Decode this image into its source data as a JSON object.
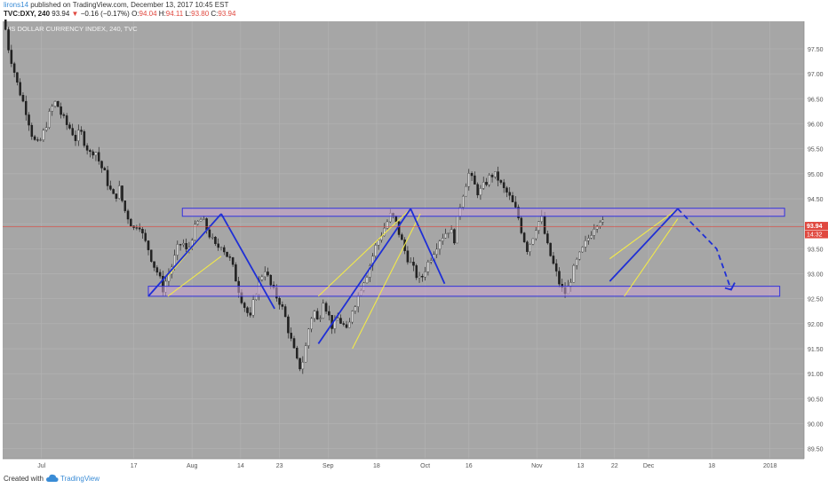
{
  "header": {
    "author": "lirons14",
    "published": "published on TradingView.com, December 13, 2017 10:45 EST",
    "symbol": "TVC:DXY, 240",
    "last": "93.94",
    "change_arrow": "▼",
    "change": "−0.16 (−0.17%)",
    "o_label": "O:",
    "o_val": "94.04",
    "h_label": "H:",
    "h_val": "94.11",
    "l_label": "L:",
    "l_val": "93.80",
    "c_label": "C:",
    "c_val": "93.94"
  },
  "chart_data": {
    "type": "candlestick",
    "title": "US DOLLAR CURRENCY INDEX, 240, TVC",
    "ylim": [
      89.3,
      98.05
    ],
    "y_ticks": [
      "89.50",
      "90.00",
      "90.50",
      "91.00",
      "91.50",
      "92.00",
      "92.50",
      "93.00",
      "93.50",
      "94.00",
      "94.50",
      "95.00",
      "95.50",
      "96.00",
      "96.50",
      "97.00",
      "97.50"
    ],
    "x_ticks": [
      "Jul",
      "17",
      "Aug",
      "14",
      "23",
      "Sep",
      "18",
      "Oct",
      "16",
      "Nov",
      "13",
      "22",
      "Dec",
      "18",
      "2018"
    ],
    "close_path": [
      [
        0.3,
        98.1
      ],
      [
        1,
        97.6
      ],
      [
        3,
        96.8
      ],
      [
        5,
        96.2
      ],
      [
        6,
        95.8
      ],
      [
        7,
        95.55
      ],
      [
        8,
        95.7
      ],
      [
        9,
        96.0
      ],
      [
        10,
        96.3
      ],
      [
        11,
        96.45
      ],
      [
        12,
        96.2
      ],
      [
        13,
        96.0
      ],
      [
        14,
        95.9
      ],
      [
        15,
        95.7
      ],
      [
        16,
        95.85
      ],
      [
        17,
        95.6
      ],
      [
        18,
        95.4
      ],
      [
        19,
        95.5
      ],
      [
        20,
        95.2
      ],
      [
        21,
        95.0
      ],
      [
        22,
        94.7
      ],
      [
        23,
        94.5
      ],
      [
        24,
        94.7
      ],
      [
        25,
        94.3
      ],
      [
        26,
        94.1
      ],
      [
        27,
        93.9
      ],
      [
        28,
        94.05
      ],
      [
        29,
        93.7
      ],
      [
        30,
        93.5
      ],
      [
        31,
        93.2
      ],
      [
        32,
        93.0
      ],
      [
        33,
        92.7
      ],
      [
        34,
        92.95
      ],
      [
        35,
        93.2
      ],
      [
        36,
        93.5
      ],
      [
        37,
        93.65
      ],
      [
        38,
        93.4
      ],
      [
        39,
        93.75
      ],
      [
        40,
        94.0
      ],
      [
        41,
        94.1
      ],
      [
        42,
        93.9
      ],
      [
        43,
        93.7
      ],
      [
        44,
        93.5
      ],
      [
        45,
        93.6
      ],
      [
        46,
        93.4
      ],
      [
        47,
        93.25
      ],
      [
        48,
        92.9
      ],
      [
        49,
        92.55
      ],
      [
        50,
        92.3
      ],
      [
        51,
        92.1
      ],
      [
        52,
        92.6
      ],
      [
        53,
        92.9
      ],
      [
        54,
        93.1
      ],
      [
        55,
        92.8
      ],
      [
        56,
        92.6
      ],
      [
        57,
        92.45
      ],
      [
        58,
        92.2
      ],
      [
        59,
        91.8
      ],
      [
        60,
        91.45
      ],
      [
        61,
        91.1
      ],
      [
        62,
        91.3
      ],
      [
        63,
        91.9
      ],
      [
        64,
        92.3
      ],
      [
        65,
        92.0
      ],
      [
        66,
        92.5
      ],
      [
        67,
        92.2
      ],
      [
        68,
        91.9
      ],
      [
        69,
        92.1
      ],
      [
        70,
        92.0
      ],
      [
        71,
        91.8
      ],
      [
        72,
        92.3
      ],
      [
        73,
        92.5
      ],
      [
        74,
        92.8
      ],
      [
        75,
        93.0
      ],
      [
        76,
        93.3
      ],
      [
        77,
        93.6
      ],
      [
        78,
        93.8
      ],
      [
        79,
        94.0
      ],
      [
        80,
        94.2
      ],
      [
        81,
        94.0
      ],
      [
        82,
        93.7
      ],
      [
        83,
        93.4
      ],
      [
        84,
        93.2
      ],
      [
        85,
        93.0
      ],
      [
        86,
        92.85
      ],
      [
        87,
        93.1
      ],
      [
        88,
        93.3
      ],
      [
        89,
        93.5
      ],
      [
        90,
        93.7
      ],
      [
        91,
        93.8
      ],
      [
        92,
        93.9
      ],
      [
        93,
        93.7
      ],
      [
        94,
        94.3
      ],
      [
        95,
        94.7
      ],
      [
        96,
        95.0
      ],
      [
        97,
        94.8
      ],
      [
        98,
        94.6
      ],
      [
        99,
        94.75
      ],
      [
        100,
        94.9
      ],
      [
        101,
        95.0
      ],
      [
        102,
        94.9
      ],
      [
        103,
        94.7
      ],
      [
        104,
        94.6
      ],
      [
        105,
        94.4
      ],
      [
        106,
        94.2
      ],
      [
        107,
        93.8
      ],
      [
        108,
        93.5
      ],
      [
        109,
        93.7
      ],
      [
        110,
        94.0
      ],
      [
        111,
        94.1
      ],
      [
        112,
        93.6
      ],
      [
        113,
        93.3
      ],
      [
        114,
        93.0
      ],
      [
        115,
        92.7
      ],
      [
        116,
        92.6
      ],
      [
        117,
        92.9
      ],
      [
        118,
        93.2
      ],
      [
        119,
        93.4
      ],
      [
        120,
        93.6
      ],
      [
        121,
        93.8
      ],
      [
        122,
        94.0
      ],
      [
        123,
        94.1
      ],
      [
        124,
        93.94
      ]
    ],
    "zones": [
      {
        "x0": 37,
        "x1": 161,
        "y0": 94.31,
        "y1": 94.15
      },
      {
        "x0": 30,
        "x1": 160,
        "y0": 92.75,
        "y1": 92.55
      }
    ],
    "blue_lines": [
      [
        [
          30,
          92.55
        ],
        [
          45,
          94.2
        ]
      ],
      [
        [
          45,
          94.2
        ],
        [
          56,
          92.3
        ]
      ],
      [
        [
          65,
          91.6
        ],
        [
          84,
          94.3
        ]
      ],
      [
        [
          84,
          94.3
        ],
        [
          91,
          92.8
        ]
      ],
      [
        [
          125,
          92.85
        ],
        [
          139,
          94.3
        ]
      ]
    ],
    "yellow_lines": [
      [
        [
          34,
          92.95
        ],
        [
          45,
          94.2
        ]
      ],
      [
        [
          34,
          92.55
        ],
        [
          45,
          93.35
        ]
      ],
      [
        [
          65,
          92.55
        ],
        [
          84,
          94.3
        ]
      ],
      [
        [
          72,
          91.5
        ],
        [
          86,
          94.2
        ]
      ],
      [
        [
          125,
          93.3
        ],
        [
          139,
          94.3
        ]
      ],
      [
        [
          128,
          92.55
        ],
        [
          139,
          94.1
        ]
      ]
    ],
    "dashed_path": [
      [
        139,
        94.3
      ],
      [
        147,
        93.5
      ],
      [
        150,
        92.68
      ]
    ],
    "price_line": 93.94,
    "last_price_label": "93.94",
    "countdown_label": "14:32",
    "colors": {
      "background": "#a6a6a6",
      "up": "#d8d8d8",
      "down": "#222222",
      "zone_fill": "#c9a2cf",
      "zone_stroke": "#3333dd",
      "blue_line": "#1f2fd6",
      "yellow_line": "#f2e94a",
      "price_line": "#e0483f"
    }
  },
  "footer": {
    "created": "Created with",
    "brand": "TradingView"
  }
}
